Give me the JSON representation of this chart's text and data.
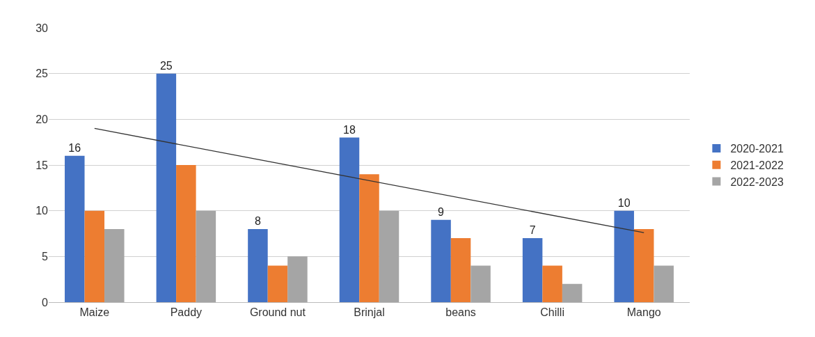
{
  "chart_data": {
    "type": "bar",
    "categories": [
      "Maize",
      "Paddy",
      "Ground nut",
      "Brinjal",
      "beans",
      "Chilli",
      "Mango"
    ],
    "series": [
      {
        "name": "2020-2021",
        "color": "#4472c4",
        "values": [
          16,
          25,
          8,
          18,
          9,
          7,
          10
        ],
        "value_labels": [
          "16",
          "25",
          "8",
          "18",
          "9",
          "7",
          "10"
        ]
      },
      {
        "name": "2021-2022",
        "color": "#ed7d31",
        "values": [
          10,
          15,
          4,
          14,
          7,
          4,
          8
        ]
      },
      {
        "name": "2022-2023",
        "color": "#a5a5a5",
        "values": [
          8,
          10,
          5,
          10,
          4,
          2,
          4
        ]
      },
      {
        "type": "line",
        "color": "#333333",
        "x": [
          "Maize",
          "Mango"
        ],
        "values": [
          19,
          7.6
        ]
      }
    ],
    "ylim": [
      0,
      30
    ],
    "yticks": [
      0,
      5,
      10,
      15,
      20,
      25,
      30
    ],
    "grid": "y",
    "legend": "right"
  }
}
